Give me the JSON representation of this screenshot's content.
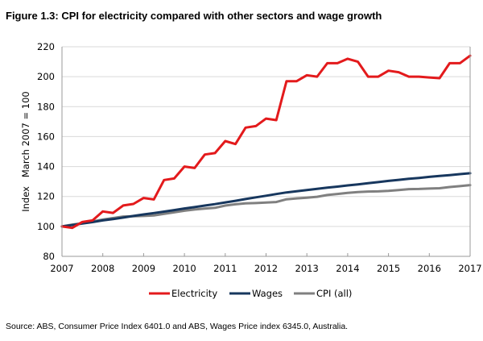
{
  "figure": {
    "title": "Figure 1.3: CPI for electricity compared with other sectors and wage growth",
    "source": "Source: ABS, Consumer Price Index 6401.0 and ABS, Wages Price index 6345.0, Australia."
  },
  "chart_data": {
    "type": "line",
    "title": "Figure 1.3: CPI for electricity compared with other sectors and wage growth",
    "xlabel": "",
    "ylabel": "Index   March 2007 = 100",
    "xlim": [
      2007,
      2017
    ],
    "ylim": [
      80,
      220
    ],
    "xticks": [
      "2007",
      "2008",
      "2009",
      "2010",
      "2011",
      "2012",
      "2013",
      "2014",
      "2015",
      "2016",
      "2017"
    ],
    "yticks": [
      "80",
      "100",
      "120",
      "140",
      "160",
      "180",
      "200",
      "220"
    ],
    "grid": "horizontal",
    "legend": "bottom",
    "x": [
      2007.0,
      2007.25,
      2007.5,
      2007.75,
      2008.0,
      2008.25,
      2008.5,
      2008.75,
      2009.0,
      2009.25,
      2009.5,
      2009.75,
      2010.0,
      2010.25,
      2010.5,
      2010.75,
      2011.0,
      2011.25,
      2011.5,
      2011.75,
      2012.0,
      2012.25,
      2012.5,
      2012.75,
      2013.0,
      2013.25,
      2013.5,
      2013.75,
      2014.0,
      2014.25,
      2014.5,
      2014.75,
      2015.0,
      2015.25,
      2015.5,
      2015.75,
      2016.0,
      2016.25,
      2016.5,
      2016.75,
      2017.0
    ],
    "series": [
      {
        "name": "Electricity",
        "color": "#e31a1c",
        "values": [
          100,
          99,
          103,
          104,
          110,
          109,
          114,
          115,
          119,
          118,
          131,
          132,
          140,
          139,
          148,
          149,
          157,
          155,
          166,
          167,
          172,
          171,
          197,
          197,
          201,
          200,
          209,
          209,
          212,
          210,
          200,
          200,
          204,
          203,
          200,
          200,
          199.5,
          199,
          209,
          209,
          214
        ]
      },
      {
        "name": "Wages",
        "color": "#17375e",
        "values": [
          100,
          100.9,
          101.9,
          102.9,
          104,
          104.9,
          105.9,
          107,
          108,
          108.9,
          109.9,
          110.9,
          112,
          112.9,
          113.9,
          114.9,
          116,
          117.1,
          118.3,
          119.4,
          120.5,
          121.6,
          122.7,
          123.5,
          124.3,
          125.1,
          125.9,
          126.6,
          127.4,
          128.1,
          128.9,
          129.6,
          130.4,
          131.1,
          131.8,
          132.4,
          133.1,
          133.7,
          134.3,
          134.9,
          135.5
        ]
      },
      {
        "name": "CPI (all)",
        "color": "#808080",
        "values": [
          100,
          101.2,
          102.2,
          103.3,
          104.6,
          105.6,
          106.6,
          106.8,
          107,
          107.3,
          108.4,
          109.4,
          110.5,
          111.3,
          111.9,
          112.4,
          113.9,
          114.8,
          115.4,
          115.6,
          115.9,
          116.3,
          118.1,
          118.7,
          119.2,
          119.8,
          121,
          121.7,
          122.4,
          122.9,
          123.3,
          123.4,
          123.7,
          124.3,
          124.9,
          125,
          125.3,
          125.5,
          126.3,
          126.9,
          127.6
        ]
      }
    ]
  }
}
